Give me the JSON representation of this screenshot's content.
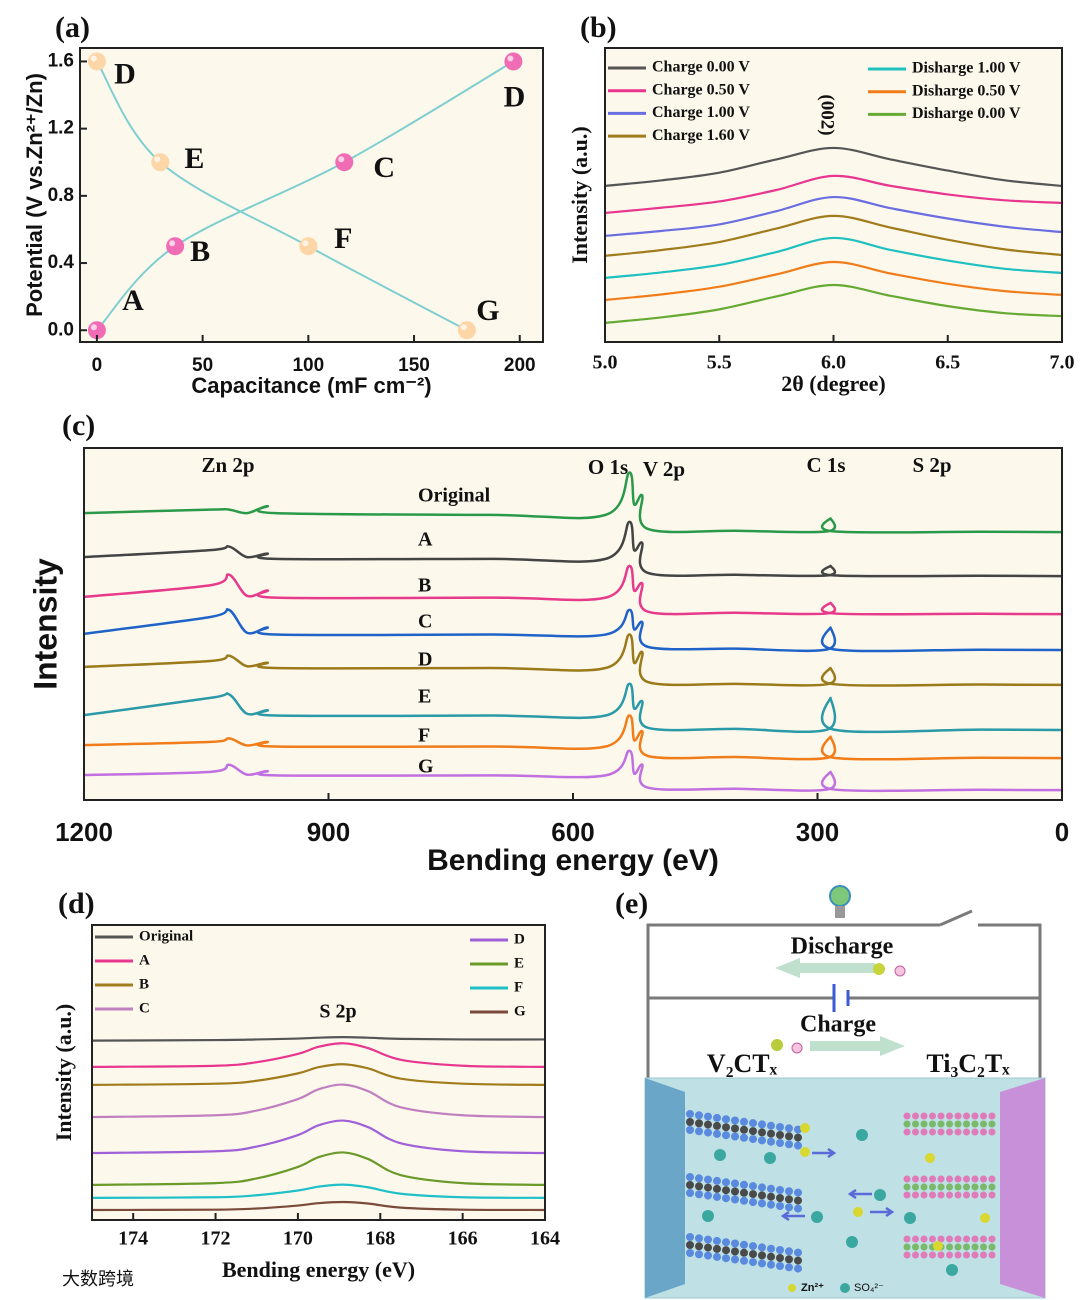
{
  "watermark": "大数跨境",
  "chart_data": [
    {
      "type": "line",
      "panel_label": "(a)",
      "xlabel": "Capacitance (mF cm⁻²)",
      "ylabel": "Potential (V vs.Zn²⁺/Zn)",
      "xlim": [
        -8,
        211
      ],
      "ylim": [
        -0.07,
        1.68
      ],
      "xticks": [
        0,
        50,
        100,
        150,
        200
      ],
      "yticks": [
        {
          "value": 0,
          "label": "0.0"
        },
        0.4,
        0.8,
        1.2,
        1.6
      ],
      "markers": true,
      "point_label_color": "#4d8a50",
      "series": [
        {
          "x": [
            0,
            37,
            117,
            197
          ],
          "values": [
            0,
            0.5,
            1,
            1.6
          ],
          "point_labels": [
            "A",
            "B",
            "C",
            "D"
          ],
          "color": "#7fcfd0",
          "marker_color": "#f06cb4"
        },
        {
          "x": [
            0,
            30,
            100,
            175
          ],
          "values": [
            1.6,
            1,
            0.5,
            0
          ],
          "point_labels": [
            "D",
            "E",
            "F",
            "G"
          ],
          "color": "#7fcfd0",
          "marker_color": "#fcd6a6"
        }
      ]
    },
    {
      "type": "line",
      "panel_label": "(b)",
      "xlabel": "2θ (degree)",
      "ylabel": "Intensity (a.u.)",
      "xlim": [
        5,
        7
      ],
      "ylim": [
        0,
        10
      ],
      "xticks": [
        {
          "value": 5,
          "label": "5.0"
        },
        5.5,
        {
          "value": 6,
          "label": "6.0"
        },
        6.5,
        {
          "value": 7,
          "label": "7.0"
        }
      ],
      "annotations": [
        "(002)"
      ],
      "legend_text_colored": true,
      "x": [
        5.0,
        5.25,
        5.5,
        5.75,
        6.0,
        6.25,
        6.5,
        6.75,
        7.0
      ],
      "series": [
        {
          "name": "Charge 0.00 V",
          "color": "#555555",
          "values": [
            5.31,
            5.5,
            5.76,
            6.21,
            6.6,
            6.21,
            5.83,
            5.5,
            5.31
          ]
        },
        {
          "name": "Charge 0.50 V",
          "color": "#e8368f",
          "values": [
            4.39,
            4.57,
            4.78,
            5.17,
            5.65,
            5.31,
            5.02,
            4.82,
            4.73
          ]
        },
        {
          "name": "Charge 1.00 V",
          "color": "#6a6ee0",
          "values": [
            3.61,
            3.78,
            4.0,
            4.45,
            4.93,
            4.55,
            4.2,
            3.92,
            3.74
          ]
        },
        {
          "name": "Charge 1.60 V",
          "color": "#a07c1c",
          "values": [
            2.93,
            3.13,
            3.4,
            3.86,
            4.29,
            3.89,
            3.48,
            3.15,
            2.96
          ]
        },
        {
          "name": "Disharge 1.00 V",
          "color": "#1ec0c0",
          "values": [
            2.18,
            2.37,
            2.62,
            3.06,
            3.54,
            3.13,
            2.77,
            2.49,
            2.35
          ]
        },
        {
          "name": "Disharge 0.50 V",
          "color": "#f07d1a",
          "values": [
            1.43,
            1.62,
            1.88,
            2.3,
            2.72,
            2.33,
            1.98,
            1.73,
            1.6
          ]
        },
        {
          "name": "Disharge 0.00 V",
          "color": "#66aa33",
          "values": [
            0.65,
            0.84,
            1.11,
            1.55,
            1.94,
            1.57,
            1.22,
            0.98,
            0.88
          ]
        }
      ]
    },
    {
      "type": "line",
      "panel_label": "(c)",
      "xlabel": "Bending energy (eV)",
      "ylabel": "Intensity",
      "xlim": [
        1200,
        0
      ],
      "ylim": [
        0,
        10
      ],
      "xticks": [
        1200,
        900,
        600,
        300,
        0
      ],
      "annotations": [
        "Zn 2p",
        "O 1s",
        "V 2p",
        "C 1s",
        "S 2p"
      ],
      "x": [
        1200,
        1045,
        1022,
        1000,
        975,
        965,
        700,
        560,
        531,
        525,
        515,
        508,
        400,
        288,
        284,
        280,
        100,
        0
      ],
      "series": [
        {
          "name": "Original",
          "color": "#2a9a4a",
          "values": [
            8.15,
            8.25,
            8.25,
            8.15,
            8.35,
            8.15,
            8.1,
            8.1,
            9.3,
            8.4,
            8.65,
            7.7,
            7.65,
            7.63,
            8.0,
            7.63,
            7.62,
            7.61
          ]
        },
        {
          "name": "A",
          "color": "#444444",
          "values": [
            6.9,
            7.1,
            7.2,
            6.9,
            7.0,
            6.85,
            6.85,
            6.85,
            7.9,
            7.1,
            7.3,
            6.45,
            6.4,
            6.38,
            6.65,
            6.38,
            6.37,
            6.36
          ]
        },
        {
          "name": "B",
          "color": "#e83a8a",
          "values": [
            5.77,
            6.1,
            6.4,
            5.8,
            5.95,
            5.75,
            5.75,
            5.75,
            6.65,
            5.95,
            6.15,
            5.35,
            5.32,
            5.3,
            5.6,
            5.3,
            5.29,
            5.28
          ]
        },
        {
          "name": "C",
          "color": "#1f63c8",
          "values": [
            4.72,
            5.2,
            5.4,
            4.75,
            4.9,
            4.7,
            4.7,
            4.7,
            5.4,
            4.85,
            5.05,
            4.35,
            4.3,
            4.28,
            4.9,
            4.28,
            4.27,
            4.26
          ]
        },
        {
          "name": "D",
          "color": "#9a7a1a",
          "values": [
            3.78,
            3.95,
            4.1,
            3.8,
            3.9,
            3.75,
            3.75,
            3.75,
            4.7,
            3.9,
            4.2,
            3.35,
            3.3,
            3.29,
            3.75,
            3.29,
            3.28,
            3.27
          ]
        },
        {
          "name": "E",
          "color": "#2a9aa8",
          "values": [
            2.41,
            2.9,
            3.0,
            2.45,
            2.55,
            2.4,
            2.4,
            2.4,
            3.3,
            2.6,
            2.8,
            2.05,
            2.02,
            2.0,
            2.9,
            2.0,
            2.0,
            1.99
          ]
        },
        {
          "name": "F",
          "color": "#f07d1a",
          "values": [
            1.56,
            1.65,
            1.75,
            1.55,
            1.65,
            1.52,
            1.52,
            1.52,
            2.4,
            1.7,
            1.95,
            1.25,
            1.22,
            1.2,
            1.8,
            1.2,
            1.2,
            1.19
          ]
        },
        {
          "name": "G",
          "color": "#c070e0",
          "values": [
            0.71,
            0.8,
            1.0,
            0.72,
            0.82,
            0.7,
            0.7,
            0.7,
            1.4,
            0.75,
            1.0,
            0.35,
            0.32,
            0.3,
            0.8,
            0.3,
            0.29,
            0.28
          ]
        }
      ]
    },
    {
      "type": "line",
      "panel_label": "(d)",
      "xlabel": "Bending energy (eV)",
      "ylabel": "Intensity (a.u.)",
      "xlim": [
        175,
        164
      ],
      "ylim": [
        0,
        10
      ],
      "xticks": [
        174,
        172,
        170,
        168,
        166,
        164
      ],
      "annotations": [
        "S 2p"
      ],
      "x": [
        175,
        172,
        171,
        170,
        169.5,
        168.9,
        168.3,
        167.5,
        166,
        164
      ],
      "series": [
        {
          "name": "Original",
          "color": "#555555",
          "values": [
            6.08,
            6.1,
            6.12,
            6.15,
            6.18,
            6.2,
            6.18,
            6.14,
            6.12,
            6.12
          ]
        },
        {
          "name": "A",
          "color": "#e8368f",
          "values": [
            5.19,
            5.23,
            5.35,
            5.63,
            5.87,
            5.99,
            5.83,
            5.43,
            5.23,
            5.19
          ]
        },
        {
          "name": "B",
          "color": "#a07c1c",
          "values": [
            4.58,
            4.62,
            4.72,
            4.97,
            5.18,
            5.28,
            5.14,
            4.79,
            4.62,
            4.58
          ]
        },
        {
          "name": "C",
          "color": "#c080c0",
          "values": [
            3.49,
            3.55,
            3.71,
            4.1,
            4.43,
            4.59,
            4.37,
            3.82,
            3.55,
            3.49
          ]
        },
        {
          "name": "D",
          "color": "#a060d8",
          "values": [
            2.27,
            2.33,
            2.49,
            2.88,
            3.21,
            3.37,
            3.15,
            2.6,
            2.33,
            2.27
          ]
        },
        {
          "name": "E",
          "color": "#6a9a2a",
          "values": [
            1.19,
            1.25,
            1.41,
            1.8,
            2.13,
            2.29,
            2.07,
            1.52,
            1.25,
            1.19
          ]
        },
        {
          "name": "F",
          "color": "#20c0c8",
          "values": [
            0.75,
            0.77,
            0.84,
            1.0,
            1.13,
            1.2,
            1.11,
            0.89,
            0.77,
            0.75
          ]
        },
        {
          "name": "G",
          "color": "#7a4a3a",
          "values": [
            0.34,
            0.35,
            0.39,
            0.49,
            0.57,
            0.61,
            0.56,
            0.42,
            0.35,
            0.34
          ]
        }
      ]
    },
    {
      "type": "diagram",
      "panel_label": "(e)",
      "discharge_label": "Discharge",
      "charge_label": "Charge",
      "left_electrode": "V₂CTₓ",
      "right_electrode": "Ti₃C₂Tₓ",
      "legend": [
        "Zn²⁺",
        "SO₄²⁻"
      ]
    }
  ]
}
